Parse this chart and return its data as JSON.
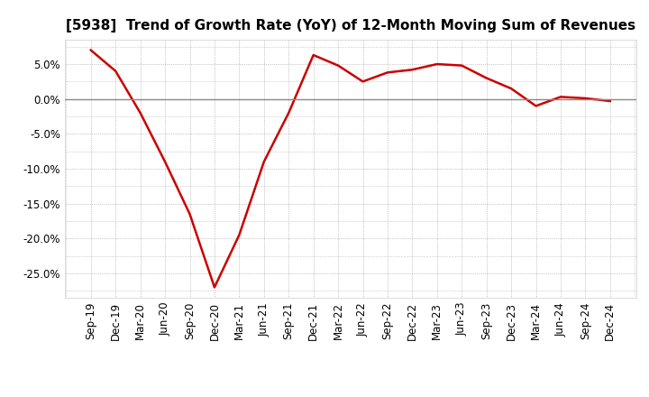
{
  "title": "[5938]  Trend of Growth Rate (YoY) of 12-Month Moving Sum of Revenues",
  "line_color": "#CC0000",
  "line_width": 1.8,
  "background_color": "#ffffff",
  "grid_color": "#999999",
  "zero_line_color": "#888888",
  "ylim": [
    -0.285,
    0.085
  ],
  "yticks": [
    0.05,
    0.0,
    -0.05,
    -0.1,
    -0.15,
    -0.2,
    -0.25
  ],
  "x_labels": [
    "Sep-19",
    "Dec-19",
    "Mar-20",
    "Jun-20",
    "Sep-20",
    "Dec-20",
    "Mar-21",
    "Jun-21",
    "Sep-21",
    "Dec-21",
    "Mar-22",
    "Jun-22",
    "Sep-22",
    "Dec-22",
    "Mar-23",
    "Jun-23",
    "Sep-23",
    "Dec-23",
    "Mar-24",
    "Jun-24",
    "Sep-24",
    "Dec-24"
  ],
  "y_values": [
    0.07,
    0.04,
    -0.02,
    -0.09,
    -0.165,
    -0.27,
    -0.195,
    -0.09,
    -0.02,
    0.063,
    0.048,
    0.025,
    0.038,
    0.042,
    0.05,
    0.048,
    0.03,
    0.015,
    -0.01,
    0.003,
    0.001,
    -0.003
  ],
  "title_fontsize": 11,
  "tick_fontsize": 8.5
}
